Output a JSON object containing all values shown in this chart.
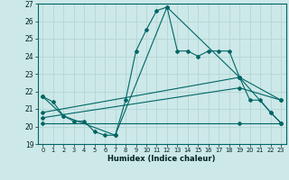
{
  "xlabel": "Humidex (Indice chaleur)",
  "bg_color": "#cde8e8",
  "grid_color": "#b8d8d8",
  "line_color": "#006666",
  "xlim": [
    -0.5,
    23.5
  ],
  "ylim": [
    19,
    27
  ],
  "yticks": [
    19,
    20,
    21,
    22,
    23,
    24,
    25,
    26,
    27
  ],
  "xticks": [
    0,
    1,
    2,
    3,
    4,
    5,
    6,
    7,
    8,
    9,
    10,
    11,
    12,
    13,
    14,
    15,
    16,
    17,
    18,
    19,
    20,
    21,
    22,
    23
  ],
  "series1_x": [
    0,
    1,
    2,
    3,
    4,
    5,
    6,
    7,
    8,
    9,
    10,
    11,
    12,
    13,
    14,
    15,
    16,
    17,
    18,
    19,
    20,
    21,
    22,
    23
  ],
  "series1_y": [
    21.7,
    21.4,
    20.6,
    20.3,
    20.3,
    19.7,
    19.5,
    19.5,
    21.5,
    24.3,
    25.5,
    26.6,
    26.8,
    24.3,
    24.3,
    24.0,
    24.3,
    24.3,
    24.3,
    22.8,
    21.5,
    21.5,
    20.8,
    20.2
  ],
  "series2_x": [
    0,
    2,
    7,
    12,
    19,
    22,
    23
  ],
  "series2_y": [
    21.7,
    20.6,
    19.5,
    26.8,
    22.8,
    20.8,
    20.2
  ],
  "series3_x": [
    0,
    19,
    23
  ],
  "series3_y": [
    20.2,
    20.2,
    20.2
  ],
  "series4_x": [
    0,
    19,
    23
  ],
  "series4_y": [
    20.5,
    22.2,
    21.5
  ],
  "series5_x": [
    0,
    19,
    23
  ],
  "series5_y": [
    20.8,
    22.8,
    21.5
  ]
}
